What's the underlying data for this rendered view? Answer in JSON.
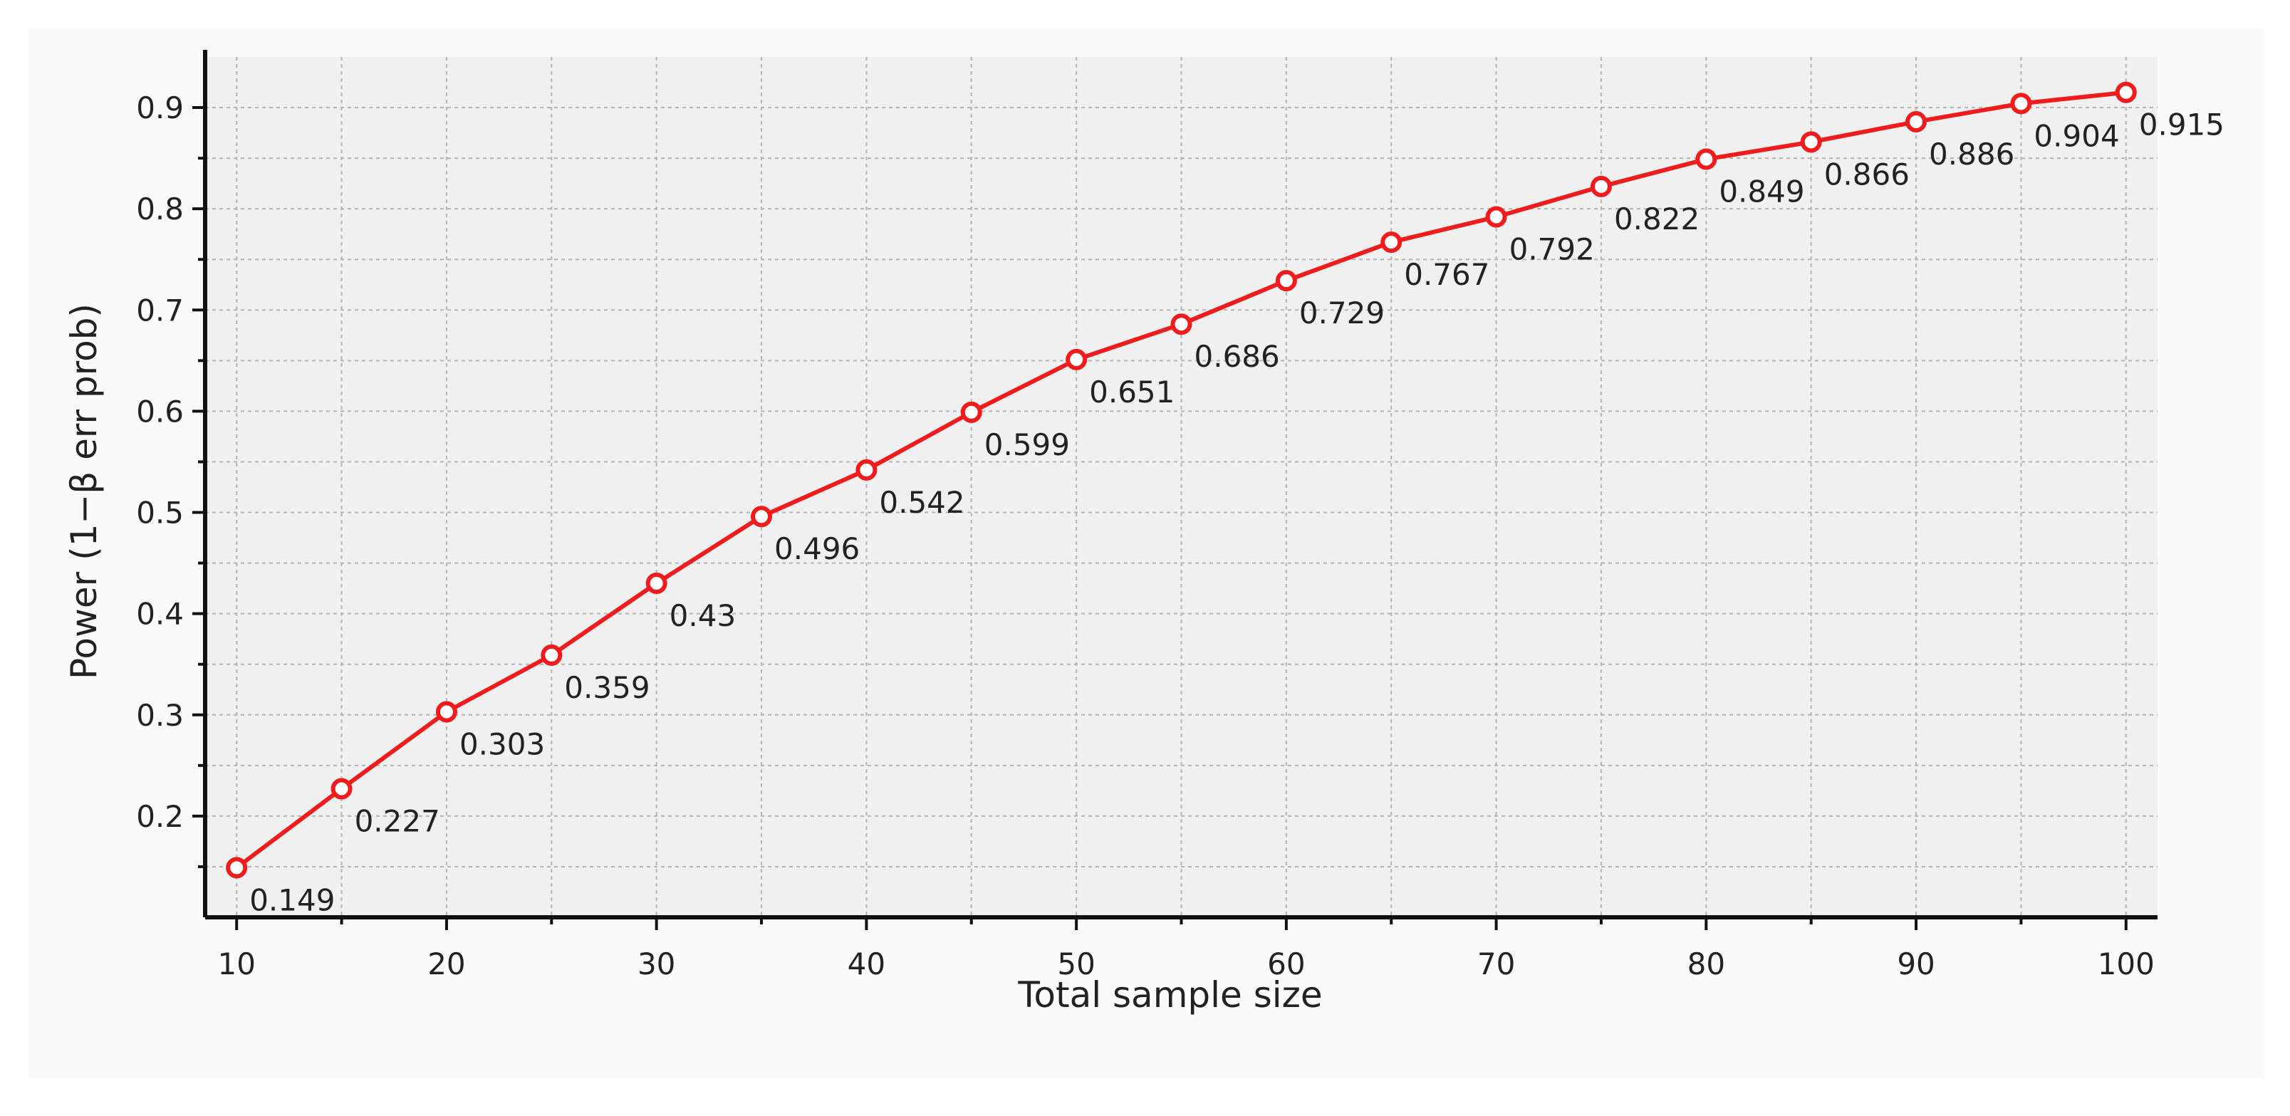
{
  "chart_data": {
    "type": "line",
    "title": "",
    "xlabel": "Total sample size",
    "ylabel": "Power (1−β err prob)",
    "xlim": [
      8.5,
      101.5
    ],
    "ylim": [
      0.1,
      0.95
    ],
    "xticks": [
      10,
      20,
      30,
      40,
      50,
      60,
      70,
      80,
      90,
      100
    ],
    "yticks": [
      0.2,
      0.3,
      0.4,
      0.5,
      0.6,
      0.7,
      0.8,
      0.9
    ],
    "ytick_labels": [
      "0.2",
      "0.3",
      "0.4",
      "0.5",
      "0.6",
      "0.7",
      "0.8",
      "0.9"
    ],
    "grid": true,
    "legend": "none",
    "colors": {
      "line": "#ee1c1c",
      "marker_fill": "#ffffff",
      "plot_background": "#f0f0f0",
      "grid": "#b4b4b4",
      "axis": "#111111"
    },
    "series": [
      {
        "x": [
          10,
          15,
          20,
          25,
          30,
          35,
          40,
          45,
          50,
          55,
          60,
          65,
          70,
          75,
          80,
          85,
          90,
          95,
          100
        ],
        "values": [
          0.149,
          0.227,
          0.303,
          0.359,
          0.43,
          0.496,
          0.542,
          0.599,
          0.651,
          0.686,
          0.729,
          0.767,
          0.792,
          0.822,
          0.849,
          0.866,
          0.886,
          0.904,
          0.915
        ],
        "labels": [
          "0.149",
          "0.227",
          "0.303",
          "0.359",
          "0.43",
          "0.496",
          "0.542",
          "0.599",
          "0.651",
          "0.686",
          "0.729",
          "0.767",
          "0.792",
          "0.822",
          "0.849",
          "0.866",
          "0.886",
          "0.904",
          "0.915"
        ]
      }
    ]
  }
}
